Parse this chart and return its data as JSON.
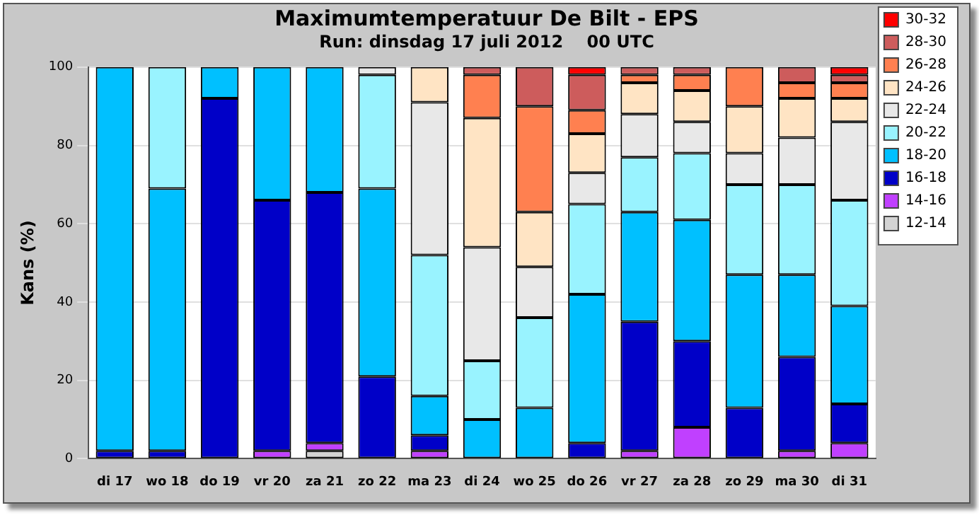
{
  "chart_data": {
    "type": "bar",
    "stacked": true,
    "title": "Maximumtemperatuur De Bilt - EPS",
    "subtitle": "Run: dinsdag 17 juli 2012    00 UTC",
    "ylabel": "Kans (%)",
    "categories": [
      "di 17",
      "wo 18",
      "do 19",
      "vr 20",
      "za 21",
      "zo 22",
      "ma 23",
      "di 24",
      "wo 25",
      "do 26",
      "vr 27",
      "za 28",
      "zo 29",
      "ma 30",
      "di 31"
    ],
    "ylim": [
      0,
      100
    ],
    "yticks": [
      0,
      20,
      40,
      60,
      80,
      100
    ],
    "grid": "y",
    "legend": "right",
    "series": [
      {
        "name": "12-14",
        "color": "#d3d3d3",
        "values": [
          null,
          null,
          null,
          null,
          2,
          null,
          null,
          null,
          null,
          null,
          null,
          null,
          null,
          null,
          null
        ]
      },
      {
        "name": "14-16",
        "color": "#c040ff",
        "values": [
          null,
          null,
          null,
          2,
          2,
          null,
          2,
          null,
          null,
          null,
          2,
          8,
          null,
          2,
          4
        ]
      },
      {
        "name": "16-18",
        "color": "#0000c8",
        "values": [
          2,
          2,
          92,
          64,
          64,
          21,
          4,
          null,
          null,
          4,
          33,
          22,
          13,
          24,
          10
        ]
      },
      {
        "name": "18-20",
        "color": "#00c0ff",
        "values": [
          98,
          67,
          8,
          34,
          32,
          48,
          10,
          10,
          13,
          38,
          28,
          31,
          34,
          21,
          25
        ]
      },
      {
        "name": "20-22",
        "color": "#99f3ff",
        "values": [
          null,
          31,
          null,
          null,
          null,
          29,
          36,
          15,
          23,
          23,
          14,
          17,
          23,
          23,
          27
        ]
      },
      {
        "name": "22-24",
        "color": "#e8e8e8",
        "values": [
          null,
          null,
          null,
          null,
          null,
          2,
          39,
          29,
          13,
          8,
          11,
          8,
          8,
          12,
          20
        ]
      },
      {
        "name": "24-26",
        "color": "#ffe4c4",
        "values": [
          null,
          null,
          null,
          null,
          null,
          null,
          9,
          33,
          14,
          10,
          8,
          8,
          12,
          10,
          6
        ]
      },
      {
        "name": "26-28",
        "color": "#ff8050",
        "values": [
          null,
          null,
          null,
          null,
          null,
          null,
          null,
          11,
          27,
          6,
          2,
          4,
          10,
          4,
          4
        ]
      },
      {
        "name": "28-30",
        "color": "#cd5c5c",
        "values": [
          null,
          null,
          null,
          null,
          null,
          null,
          null,
          2,
          10,
          9,
          2,
          2,
          null,
          4,
          2
        ]
      },
      {
        "name": "30-32",
        "color": "#ff0000",
        "values": [
          null,
          null,
          null,
          null,
          null,
          null,
          null,
          null,
          null,
          2,
          null,
          null,
          null,
          null,
          2
        ]
      }
    ]
  }
}
